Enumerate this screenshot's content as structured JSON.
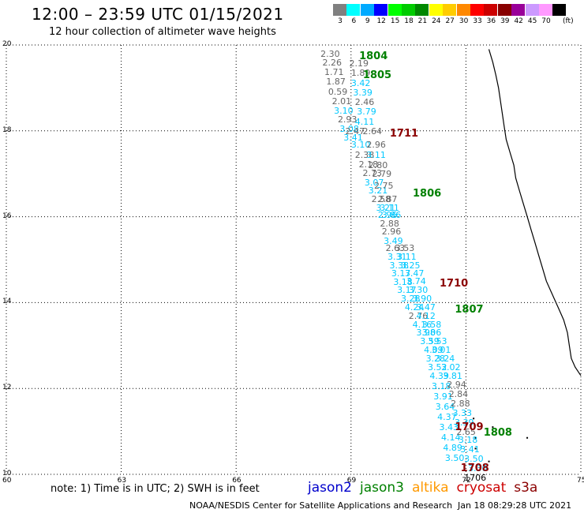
{
  "header": {
    "title": "12:00 – 23:59 UTC 01/15/2021",
    "subtitle": "12 hour collection of altimeter wave heights"
  },
  "legend": {
    "unit": "(ft)",
    "bins": [
      {
        "label": "3",
        "color": "#808080"
      },
      {
        "label": "6",
        "color": "#00ffff"
      },
      {
        "label": "9",
        "color": "#00aaff"
      },
      {
        "label": "12",
        "color": "#0000ff"
      },
      {
        "label": "15",
        "color": "#00ff00"
      },
      {
        "label": "18",
        "color": "#00cc00"
      },
      {
        "label": "21",
        "color": "#008800"
      },
      {
        "label": "24",
        "color": "#ffff00"
      },
      {
        "label": "27",
        "color": "#ffcc00"
      },
      {
        "label": "30",
        "color": "#ff8800"
      },
      {
        "label": "33",
        "color": "#ff0000"
      },
      {
        "label": "36",
        "color": "#cc0000"
      },
      {
        "label": "39",
        "color": "#880000"
      },
      {
        "label": "42",
        "color": "#990099"
      },
      {
        "label": "45",
        "color": "#cc99ff"
      },
      {
        "label": "70",
        "color": "#ff99ff"
      },
      {
        "label": "",
        "color": "#000000"
      }
    ]
  },
  "map": {
    "lon_range": [
      60,
      75
    ],
    "lat_range": [
      10,
      20
    ],
    "x_ticks": [
      "60",
      "63",
      "66",
      "69",
      "72",
      "75"
    ],
    "y_ticks": [
      "10",
      "12",
      "14",
      "16",
      "18",
      "20"
    ],
    "coastline": [
      [
        72.6,
        19.9
      ],
      [
        72.7,
        19.6
      ],
      [
        72.78,
        19.3
      ],
      [
        72.85,
        19.0
      ],
      [
        72.9,
        18.7
      ],
      [
        72.95,
        18.4
      ],
      [
        73.0,
        18.1
      ],
      [
        73.05,
        17.8
      ],
      [
        73.15,
        17.5
      ],
      [
        73.25,
        17.2
      ],
      [
        73.3,
        16.9
      ],
      [
        73.4,
        16.6
      ],
      [
        73.5,
        16.3
      ],
      [
        73.6,
        16.0
      ],
      [
        73.7,
        15.7
      ],
      [
        73.8,
        15.4
      ],
      [
        73.9,
        15.1
      ],
      [
        74.0,
        14.8
      ],
      [
        74.1,
        14.5
      ],
      [
        74.25,
        14.2
      ],
      [
        74.4,
        13.9
      ],
      [
        74.55,
        13.6
      ],
      [
        74.65,
        13.3
      ],
      [
        74.7,
        13.0
      ],
      [
        74.75,
        12.7
      ],
      [
        74.85,
        12.5
      ],
      [
        75.0,
        12.3
      ]
    ],
    "islands": [
      [
        72.7,
        11.1
      ],
      [
        72.25,
        10.85
      ],
      [
        72.25,
        10.6
      ],
      [
        73.6,
        10.85
      ],
      [
        72.2,
        11.3
      ],
      [
        72.6,
        10.3
      ]
    ],
    "wave_labels": [
      {
        "text": "2.30",
        "lon": 68.45,
        "lat": 19.8,
        "c": "gray"
      },
      {
        "text": "2.26",
        "lon": 68.5,
        "lat": 19.6,
        "c": "gray"
      },
      {
        "text": "1.71",
        "lon": 68.55,
        "lat": 19.38,
        "c": "gray"
      },
      {
        "text": "1.87",
        "lon": 68.6,
        "lat": 19.15,
        "c": "gray"
      },
      {
        "text": "0.59",
        "lon": 68.65,
        "lat": 18.92,
        "c": "gray"
      },
      {
        "text": "2.01",
        "lon": 68.75,
        "lat": 18.7,
        "c": "gray"
      },
      {
        "text": "3.10",
        "lon": 68.8,
        "lat": 18.48,
        "c": "cyan"
      },
      {
        "text": "2.93",
        "lon": 68.9,
        "lat": 18.27,
        "c": "gray"
      },
      {
        "text": "3.08",
        "lon": 68.95,
        "lat": 18.05,
        "c": "cyan"
      },
      {
        "text": "3.41",
        "lon": 69.05,
        "lat": 17.85,
        "c": "cyan"
      },
      {
        "text": "2.47",
        "lon": 69.1,
        "lat": 18.0,
        "c": "gray"
      },
      {
        "text": "3.10",
        "lon": 69.25,
        "lat": 17.68,
        "c": "cyan"
      },
      {
        "text": "2.38",
        "lon": 69.35,
        "lat": 17.45,
        "c": "gray"
      },
      {
        "text": "2.18",
        "lon": 69.45,
        "lat": 17.22,
        "c": "gray"
      },
      {
        "text": "2.73",
        "lon": 69.55,
        "lat": 17.02,
        "c": "gray"
      },
      {
        "text": "3.07",
        "lon": 69.6,
        "lat": 16.8,
        "c": "cyan"
      },
      {
        "text": "3.21",
        "lon": 69.7,
        "lat": 16.62,
        "c": "cyan"
      },
      {
        "text": "2.58",
        "lon": 69.78,
        "lat": 16.42,
        "c": "gray"
      },
      {
        "text": "3.21",
        "lon": 69.9,
        "lat": 16.22,
        "c": "cyan"
      },
      {
        "text": "2.96",
        "lon": 69.95,
        "lat": 16.04,
        "c": "cyan"
      },
      {
        "text": "2.88",
        "lon": 70.0,
        "lat": 15.85,
        "c": "gray"
      },
      {
        "text": "2.96",
        "lon": 70.05,
        "lat": 15.66,
        "c": "gray"
      },
      {
        "text": "3.49",
        "lon": 70.1,
        "lat": 15.45,
        "c": "cyan"
      },
      {
        "text": "2.63",
        "lon": 70.15,
        "lat": 15.27,
        "c": "gray"
      },
      {
        "text": "3.31",
        "lon": 70.2,
        "lat": 15.08,
        "c": "cyan"
      },
      {
        "text": "3.38",
        "lon": 70.25,
        "lat": 14.88,
        "c": "cyan"
      },
      {
        "text": "3.17",
        "lon": 70.3,
        "lat": 14.68,
        "c": "cyan"
      },
      {
        "text": "3.18",
        "lon": 70.35,
        "lat": 14.48,
        "c": "cyan"
      },
      {
        "text": "3.17",
        "lon": 70.45,
        "lat": 14.3,
        "c": "cyan"
      },
      {
        "text": "3.28",
        "lon": 70.55,
        "lat": 14.1,
        "c": "cyan"
      },
      {
        "text": "4.24",
        "lon": 70.65,
        "lat": 13.9,
        "c": "cyan"
      },
      {
        "text": "2.76",
        "lon": 70.75,
        "lat": 13.7,
        "c": "gray"
      },
      {
        "text": "4.16",
        "lon": 70.85,
        "lat": 13.5,
        "c": "cyan"
      },
      {
        "text": "3.98",
        "lon": 70.95,
        "lat": 13.3,
        "c": "cyan"
      },
      {
        "text": "3.59",
        "lon": 71.05,
        "lat": 13.1,
        "c": "cyan"
      },
      {
        "text": "4.09",
        "lon": 71.15,
        "lat": 12.9,
        "c": "cyan"
      },
      {
        "text": "3.28",
        "lon": 71.2,
        "lat": 12.7,
        "c": "cyan"
      },
      {
        "text": "3.52",
        "lon": 71.25,
        "lat": 12.5,
        "c": "cyan"
      },
      {
        "text": "4.39",
        "lon": 71.3,
        "lat": 12.3,
        "c": "cyan"
      },
      {
        "text": "3.18",
        "lon": 71.35,
        "lat": 12.05,
        "c": "cyan"
      },
      {
        "text": "3.91",
        "lon": 71.4,
        "lat": 11.82,
        "c": "cyan"
      },
      {
        "text": "3.64",
        "lon": 71.45,
        "lat": 11.58,
        "c": "cyan"
      },
      {
        "text": "4.37",
        "lon": 71.5,
        "lat": 11.34,
        "c": "cyan"
      },
      {
        "text": "3.43",
        "lon": 71.55,
        "lat": 11.1,
        "c": "cyan"
      },
      {
        "text": "4.14",
        "lon": 71.6,
        "lat": 10.86,
        "c": "cyan"
      },
      {
        "text": "4.89",
        "lon": 71.65,
        "lat": 10.62,
        "c": "cyan"
      },
      {
        "text": "3.50",
        "lon": 71.7,
        "lat": 10.38,
        "c": "cyan"
      },
      {
        "text": "2.19",
        "lon": 69.2,
        "lat": 19.58,
        "c": "gray"
      },
      {
        "text": "1.89",
        "lon": 69.25,
        "lat": 19.35,
        "c": "gray"
      },
      {
        "text": "3.42",
        "lon": 69.25,
        "lat": 19.12,
        "c": "cyan"
      },
      {
        "text": "3.39",
        "lon": 69.3,
        "lat": 18.9,
        "c": "cyan"
      },
      {
        "text": "2.46",
        "lon": 69.35,
        "lat": 18.68,
        "c": "gray"
      },
      {
        "text": "3.79",
        "lon": 69.4,
        "lat": 18.45,
        "c": "cyan"
      },
      {
        "text": "4.11",
        "lon": 69.35,
        "lat": 18.22,
        "c": "cyan"
      },
      {
        "text": "2.64",
        "lon": 69.55,
        "lat": 18.0,
        "c": "gray"
      },
      {
        "text": "2.96",
        "lon": 69.65,
        "lat": 17.68,
        "c": "gray"
      },
      {
        "text": "3.11",
        "lon": 69.65,
        "lat": 17.45,
        "c": "cyan"
      },
      {
        "text": "2.80",
        "lon": 69.7,
        "lat": 17.2,
        "c": "gray"
      },
      {
        "text": "2.79",
        "lon": 69.8,
        "lat": 17.0,
        "c": "gray"
      },
      {
        "text": "2.75",
        "lon": 69.85,
        "lat": 16.72,
        "c": "gray"
      },
      {
        "text": "2.87",
        "lon": 69.95,
        "lat": 16.42,
        "c": "gray"
      },
      {
        "text": "3.11",
        "lon": 70.0,
        "lat": 16.22,
        "c": "cyan"
      },
      {
        "text": "3.86",
        "lon": 70.05,
        "lat": 16.04,
        "c": "cyan"
      },
      {
        "text": "3.53",
        "lon": 70.4,
        "lat": 15.27,
        "c": "gray"
      },
      {
        "text": "3.11",
        "lon": 70.45,
        "lat": 15.08,
        "c": "cyan"
      },
      {
        "text": "3.25",
        "lon": 70.55,
        "lat": 14.88,
        "c": "cyan"
      },
      {
        "text": "3.47",
        "lon": 70.65,
        "lat": 14.68,
        "c": "cyan"
      },
      {
        "text": "3.74",
        "lon": 70.7,
        "lat": 14.5,
        "c": "cyan"
      },
      {
        "text": "3.30",
        "lon": 70.75,
        "lat": 14.3,
        "c": "cyan"
      },
      {
        "text": "3.90",
        "lon": 70.85,
        "lat": 14.1,
        "c": "cyan"
      },
      {
        "text": "3.47",
        "lon": 70.95,
        "lat": 13.9,
        "c": "cyan"
      },
      {
        "text": "4.12",
        "lon": 70.95,
        "lat": 13.7,
        "c": "cyan"
      },
      {
        "text": "3.58",
        "lon": 71.1,
        "lat": 13.5,
        "c": "cyan"
      },
      {
        "text": "3.06",
        "lon": 71.1,
        "lat": 13.3,
        "c": "cyan"
      },
      {
        "text": "3.53",
        "lon": 71.25,
        "lat": 13.1,
        "c": "cyan"
      },
      {
        "text": "3.01",
        "lon": 71.35,
        "lat": 12.9,
        "c": "cyan"
      },
      {
        "text": "3.24",
        "lon": 71.45,
        "lat": 12.7,
        "c": "cyan"
      },
      {
        "text": "3.02",
        "lon": 71.6,
        "lat": 12.5,
        "c": "cyan"
      },
      {
        "text": "3.81",
        "lon": 71.65,
        "lat": 12.3,
        "c": "cyan"
      },
      {
        "text": "2.94",
        "lon": 71.75,
        "lat": 12.1,
        "c": "gray"
      },
      {
        "text": "2.84",
        "lon": 71.8,
        "lat": 11.88,
        "c": "gray"
      },
      {
        "text": "2.88",
        "lon": 71.85,
        "lat": 11.66,
        "c": "gray"
      },
      {
        "text": "3.33",
        "lon": 71.9,
        "lat": 11.44,
        "c": "cyan"
      },
      {
        "text": "3.39",
        "lon": 71.95,
        "lat": 11.22,
        "c": "cyan"
      },
      {
        "text": "2.65",
        "lon": 72.0,
        "lat": 11.0,
        "c": "gray"
      },
      {
        "text": "3.18",
        "lon": 72.05,
        "lat": 10.8,
        "c": "cyan"
      },
      {
        "text": "3.41",
        "lon": 72.1,
        "lat": 10.58,
        "c": "cyan"
      },
      {
        "text": "3.50",
        "lon": 72.2,
        "lat": 10.36,
        "c": "cyan"
      },
      {
        "text": "3.30",
        "lon": 72.3,
        "lat": 10.14,
        "c": "cyan"
      },
      {
        "text": "1706",
        "lon": 72.2,
        "lat": 9.92,
        "c": "black"
      }
    ],
    "pass_labels": [
      {
        "text": "1804",
        "lon": 69.5,
        "lat": 19.75,
        "c": "green"
      },
      {
        "text": "1805",
        "lon": 69.6,
        "lat": 19.3,
        "c": "green"
      },
      {
        "text": "1711",
        "lon": 70.3,
        "lat": 17.95,
        "c": "maroon"
      },
      {
        "text": "1806",
        "lon": 70.9,
        "lat": 16.55,
        "c": "green"
      },
      {
        "text": "1710",
        "lon": 71.6,
        "lat": 14.45,
        "c": "maroon"
      },
      {
        "text": "1807",
        "lon": 72.0,
        "lat": 13.85,
        "c": "green"
      },
      {
        "text": "1709",
        "lon": 72.0,
        "lat": 11.1,
        "c": "maroon"
      },
      {
        "text": "1808",
        "lon": 72.75,
        "lat": 10.98,
        "c": "green"
      },
      {
        "text": "1708",
        "lon": 72.15,
        "lat": 10.15,
        "c": "maroon"
      }
    ]
  },
  "footer": {
    "note": "note:  1) Time is in UTC;  2) SWH is in feet",
    "missions": [
      {
        "label": "jason2",
        "color": "#0000cc"
      },
      {
        "label": "jason3",
        "color": "#008000"
      },
      {
        "label": "altika",
        "color": "#ff9900"
      },
      {
        "label": "cryosat",
        "color": "#cc0000"
      },
      {
        "label": "s3a",
        "color": "#8b0000"
      }
    ],
    "credit": "NOAA/NESDIS Center for Satellite Applications and Research",
    "timestamp": "Jan 18 08:29:28 UTC 2021"
  }
}
